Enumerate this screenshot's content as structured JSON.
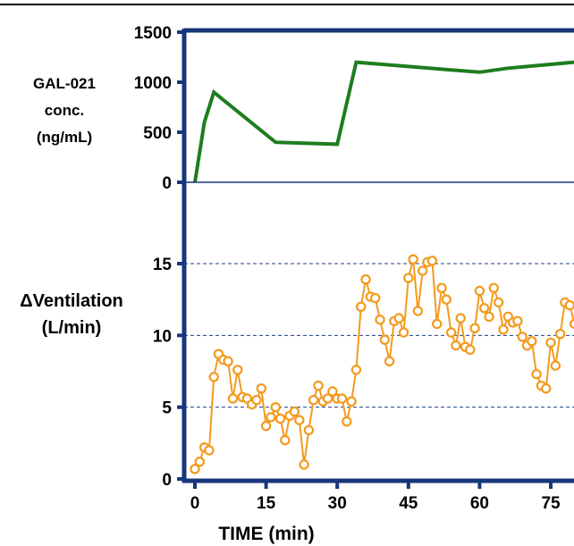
{
  "chart_data": [
    {
      "type": "line",
      "panel": "top",
      "ylabel": [
        "GAL-021",
        "conc.",
        "(ng/mL)"
      ],
      "ylim": [
        0,
        1500
      ],
      "yticks": [
        "0",
        "500",
        "1000",
        "1500"
      ],
      "xlim": [
        -2,
        80
      ],
      "series": [
        {
          "color": "#1e7d1e",
          "x": [
            0,
            2,
            4,
            17,
            30,
            34,
            60,
            66,
            80
          ],
          "y": [
            0,
            600,
            900,
            400,
            380,
            1200,
            1100,
            1140,
            1200
          ]
        }
      ]
    },
    {
      "type": "line",
      "panel": "bottom",
      "ylabel": [
        "ΔVentilation",
        "(L/min)"
      ],
      "ylim": [
        0,
        17
      ],
      "yticks": [
        "0",
        "5",
        "10",
        "15"
      ],
      "gridlines": [
        5,
        10,
        15
      ],
      "xlim": [
        -2,
        80
      ],
      "xticks": [
        "0",
        "15",
        "30",
        "45",
        "60",
        "75"
      ],
      "xlabel": "TIME (min)",
      "series": [
        {
          "color": "#f39a1e",
          "x": [
            0,
            1,
            2,
            3,
            4,
            5,
            6,
            7,
            8,
            9,
            10,
            11,
            12,
            13,
            14,
            15,
            16,
            17,
            18,
            19,
            20,
            21,
            22,
            23,
            24,
            25,
            26,
            27,
            28,
            29,
            30,
            31,
            32,
            33,
            34,
            35,
            36,
            37,
            38,
            39,
            40,
            41,
            42,
            43,
            44,
            45,
            46,
            47,
            48,
            49,
            50,
            51,
            52,
            53,
            54,
            55,
            56,
            57,
            58,
            59,
            60,
            61,
            62,
            63,
            64,
            65,
            66,
            67,
            68,
            69,
            70,
            71,
            72,
            73,
            74,
            75,
            76,
            77,
            78,
            79,
            80
          ],
          "y": [
            0.7,
            1.2,
            2.2,
            2.0,
            7.1,
            8.7,
            8.3,
            8.2,
            5.6,
            7.6,
            5.7,
            5.6,
            5.2,
            5.5,
            6.3,
            3.7,
            4.3,
            5.0,
            4.2,
            2.7,
            4.4,
            4.7,
            4.1,
            1.0,
            3.4,
            5.5,
            6.5,
            5.4,
            5.6,
            6.1,
            5.6,
            5.6,
            4.0,
            5.4,
            7.6,
            12.0,
            13.9,
            12.7,
            12.6,
            11.1,
            9.7,
            8.2,
            11.0,
            11.2,
            10.2,
            14.0,
            15.3,
            11.7,
            14.5,
            15.1,
            15.2,
            10.8,
            13.3,
            12.5,
            10.2,
            9.3,
            11.2,
            9.2,
            9.0,
            10.5,
            13.1,
            11.9,
            11.3,
            13.3,
            12.3,
            10.4,
            11.3,
            10.9,
            11.0,
            9.9,
            9.3,
            9.6,
            7.3,
            6.5,
            6.3,
            9.5,
            7.9,
            10.1,
            12.3,
            12.1,
            10.8
          ]
        }
      ]
    }
  ]
}
